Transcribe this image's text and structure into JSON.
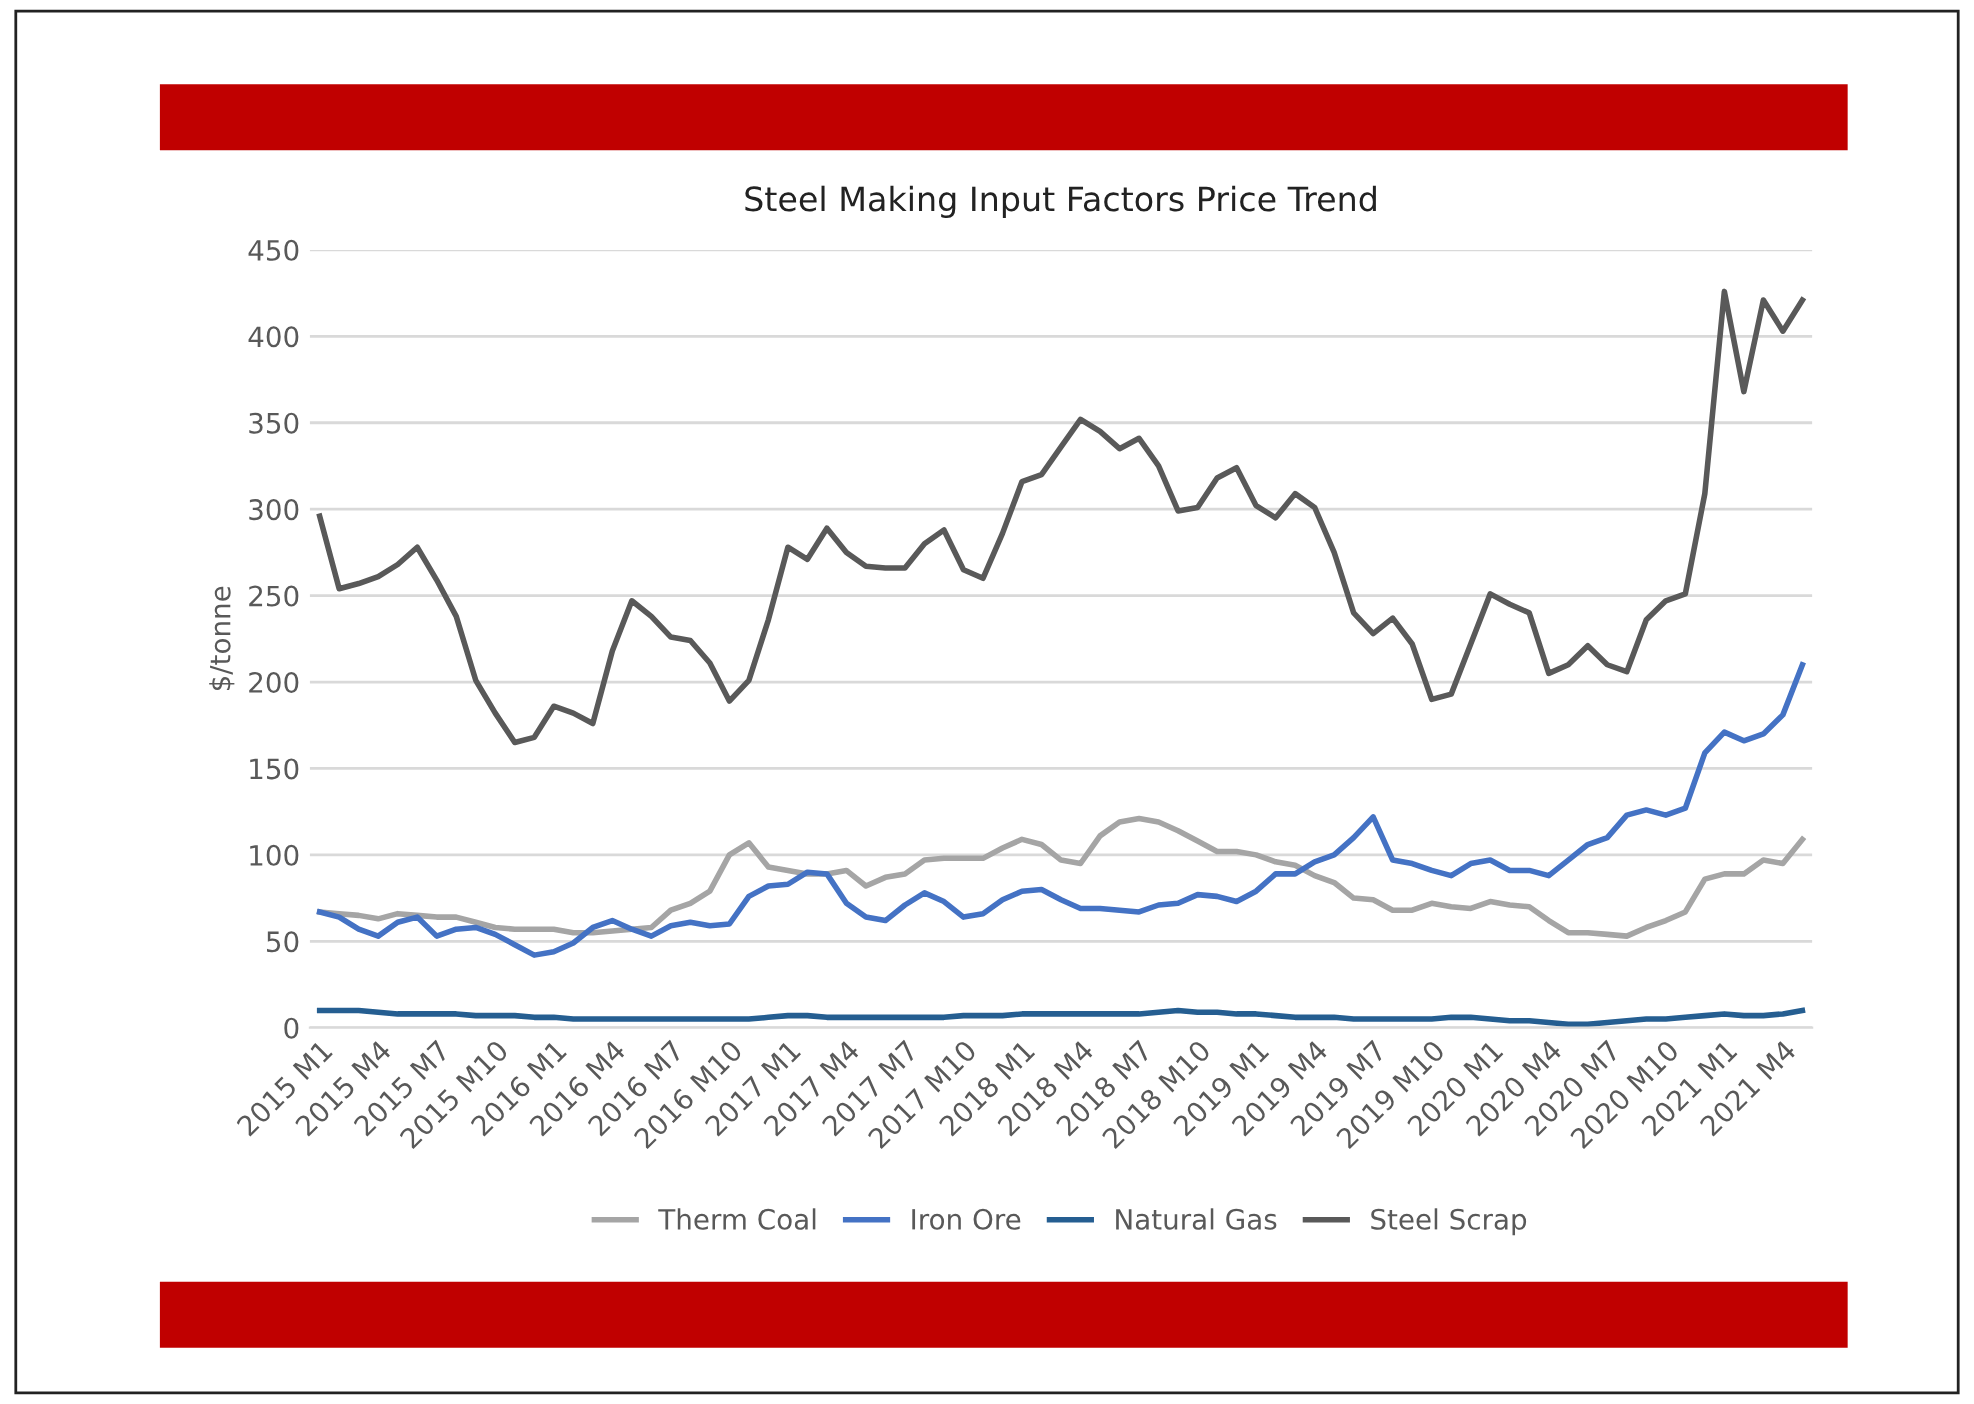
{
  "chart_data": {
    "type": "line",
    "title": "Steel Making Input Factors Price Trend",
    "ylabel": "$/tonne",
    "categories": [
      "2015 M1",
      null,
      null,
      "2015 M4",
      null,
      null,
      "2015 M7",
      null,
      null,
      "2015 M10",
      null,
      null,
      "2016 M1",
      null,
      null,
      "2016 M4",
      null,
      null,
      "2016 M7",
      null,
      null,
      "2016 M10",
      null,
      null,
      "2017 M1",
      null,
      null,
      "2017 M4",
      null,
      null,
      "2017 M7",
      null,
      null,
      "2017 M10",
      null,
      null,
      "2018 M1",
      null,
      null,
      "2018 M4",
      null,
      null,
      "2018 M7",
      null,
      null,
      "2018 M10",
      null,
      null,
      "2019 M1",
      null,
      null,
      "2019 M4",
      null,
      null,
      "2019 M7",
      null,
      null,
      "2019 M10",
      null,
      null,
      "2020 M1",
      null,
      null,
      "2020 M4",
      null,
      null,
      "2020 M7",
      null,
      null,
      "2020 M10",
      null,
      null,
      "2021 M1",
      null,
      null,
      "2021 M4",
      null
    ],
    "series": [
      {
        "name": "Therm Coal",
        "color": "#a5a5a5",
        "values": [
          67,
          66,
          65,
          63,
          66,
          65,
          64,
          64,
          61,
          58,
          57,
          57,
          57,
          55,
          55,
          56,
          57,
          58,
          68,
          72,
          79,
          100,
          107,
          93,
          91,
          89,
          89,
          91,
          82,
          87,
          89,
          97,
          98,
          98,
          98,
          104,
          109,
          106,
          97,
          95,
          111,
          119,
          121,
          119,
          114,
          108,
          102,
          102,
          100,
          96,
          94,
          88,
          84,
          75,
          74,
          68,
          68,
          72,
          70,
          69,
          73,
          71,
          70,
          62,
          55,
          55,
          54,
          53,
          58,
          62,
          67,
          86,
          89,
          89,
          97,
          95,
          109
        ]
      },
      {
        "name": "Iron Ore",
        "color": "#4472c4",
        "values": [
          67,
          64,
          57,
          53,
          61,
          64,
          53,
          57,
          58,
          54,
          48,
          42,
          44,
          49,
          58,
          62,
          57,
          53,
          59,
          61,
          59,
          60,
          76,
          82,
          83,
          90,
          89,
          72,
          64,
          62,
          71,
          78,
          73,
          64,
          66,
          74,
          79,
          80,
          74,
          69,
          69,
          68,
          67,
          71,
          72,
          77,
          76,
          73,
          79,
          89,
          89,
          96,
          100,
          110,
          122,
          97,
          95,
          91,
          88,
          95,
          97,
          91,
          91,
          88,
          97,
          106,
          110,
          123,
          126,
          123,
          127,
          159,
          171,
          166,
          170,
          181,
          210
        ]
      },
      {
        "name": "Natural Gas",
        "color": "#255e91",
        "values": [
          10,
          10,
          10,
          9,
          8,
          8,
          8,
          8,
          7,
          7,
          7,
          6,
          6,
          5,
          5,
          5,
          5,
          5,
          5,
          5,
          5,
          5,
          5,
          6,
          7,
          7,
          6,
          6,
          6,
          6,
          6,
          6,
          6,
          7,
          7,
          7,
          8,
          8,
          8,
          8,
          8,
          8,
          8,
          9,
          10,
          9,
          9,
          8,
          8,
          7,
          6,
          6,
          6,
          5,
          5,
          5,
          5,
          5,
          6,
          6,
          5,
          4,
          4,
          3,
          2,
          2,
          3,
          4,
          5,
          5,
          6,
          7,
          8,
          7,
          7,
          8,
          10
        ]
      },
      {
        "name": "Steel Scrap",
        "color": "#595959",
        "values": [
          296,
          254,
          257,
          261,
          268,
          278,
          259,
          238,
          201,
          182,
          165,
          168,
          186,
          182,
          176,
          218,
          247,
          238,
          226,
          224,
          211,
          189,
          201,
          236,
          278,
          271,
          289,
          275,
          267,
          266,
          266,
          280,
          288,
          265,
          260,
          286,
          316,
          320,
          336,
          352,
          345,
          335,
          341,
          325,
          299,
          301,
          318,
          324,
          302,
          295,
          309,
          301,
          275,
          240,
          228,
          237,
          222,
          190,
          193,
          222,
          251,
          245,
          240,
          205,
          210,
          221,
          210,
          206,
          236,
          247,
          251,
          309,
          426,
          368,
          421,
          403,
          421
        ]
      }
    ],
    "ylim": [
      0,
      450
    ],
    "yticks": [
      0,
      50,
      100,
      150,
      200,
      250,
      300,
      350,
      400,
      450
    ],
    "grid": "y",
    "legend": "bottom",
    "marker": "none",
    "line_style": "solid"
  }
}
